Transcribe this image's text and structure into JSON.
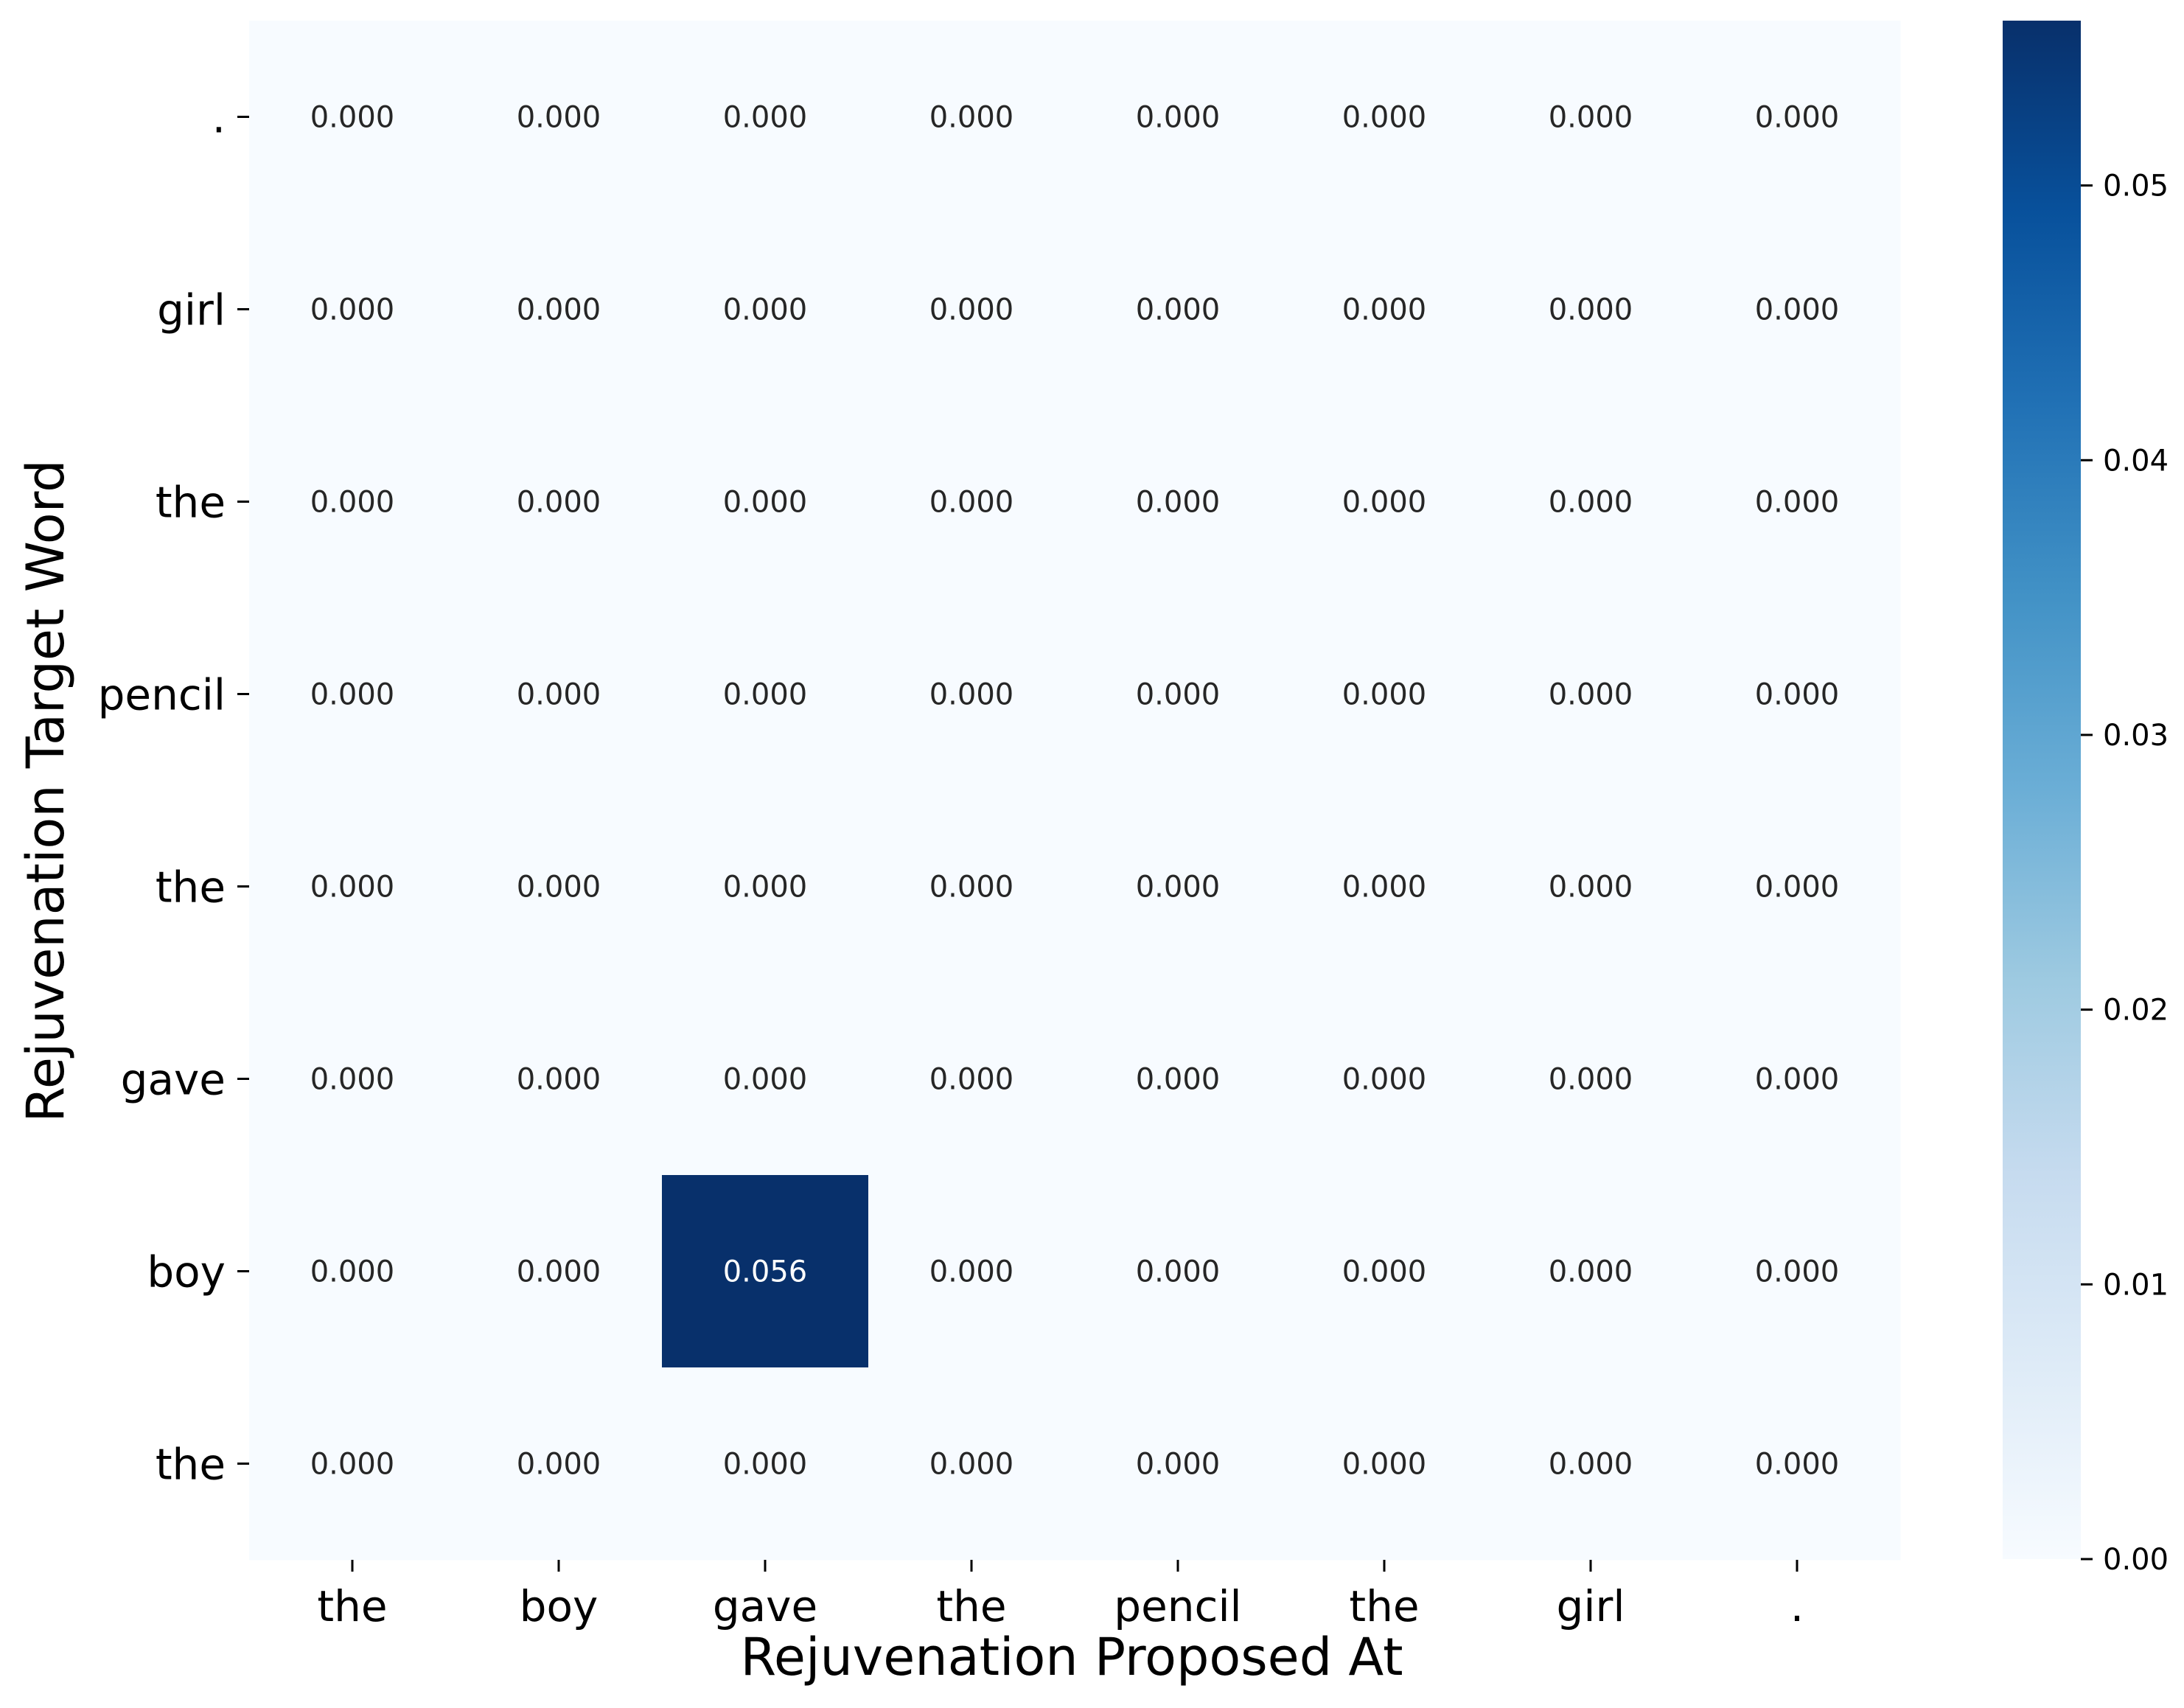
{
  "chart_data": {
    "type": "heatmap",
    "title": "",
    "xlabel": "Rejuvenation Proposed At",
    "ylabel": "Rejuvenation Target Word",
    "x_categories": [
      "the",
      "boy",
      "gave",
      "the",
      "pencil",
      "the",
      "girl",
      "."
    ],
    "y_categories": [
      ".",
      "girl",
      "the",
      "pencil",
      "the",
      "gave",
      "boy",
      "the"
    ],
    "values": [
      [
        0.0,
        0.0,
        0.0,
        0.0,
        0.0,
        0.0,
        0.0,
        0.0
      ],
      [
        0.0,
        0.0,
        0.0,
        0.0,
        0.0,
        0.0,
        0.0,
        0.0
      ],
      [
        0.0,
        0.0,
        0.0,
        0.0,
        0.0,
        0.0,
        0.0,
        0.0
      ],
      [
        0.0,
        0.0,
        0.0,
        0.0,
        0.0,
        0.0,
        0.0,
        0.0
      ],
      [
        0.0,
        0.0,
        0.0,
        0.0,
        0.0,
        0.0,
        0.0,
        0.0
      ],
      [
        0.0,
        0.0,
        0.0,
        0.0,
        0.0,
        0.0,
        0.0,
        0.0
      ],
      [
        0.0,
        0.0,
        0.056,
        0.0,
        0.0,
        0.0,
        0.0,
        0.0
      ],
      [
        0.0,
        0.0,
        0.0,
        0.0,
        0.0,
        0.0,
        0.0,
        0.0
      ]
    ],
    "annotation_format": "3 decimals",
    "colormap": "Blues",
    "color_low": "#f7fbff",
    "color_high": "#08306b",
    "annotation_light_color": "#ffffff",
    "annotation_dark_color": "#262626",
    "colorbar": {
      "range": [
        0.0,
        0.056
      ],
      "ticks": [
        0.0,
        0.01,
        0.02,
        0.03,
        0.04,
        0.05
      ],
      "tick_labels": [
        "0.00",
        "0.01",
        "0.02",
        "0.03",
        "0.04",
        "0.05"
      ],
      "placement": "right"
    },
    "grid": false
  }
}
